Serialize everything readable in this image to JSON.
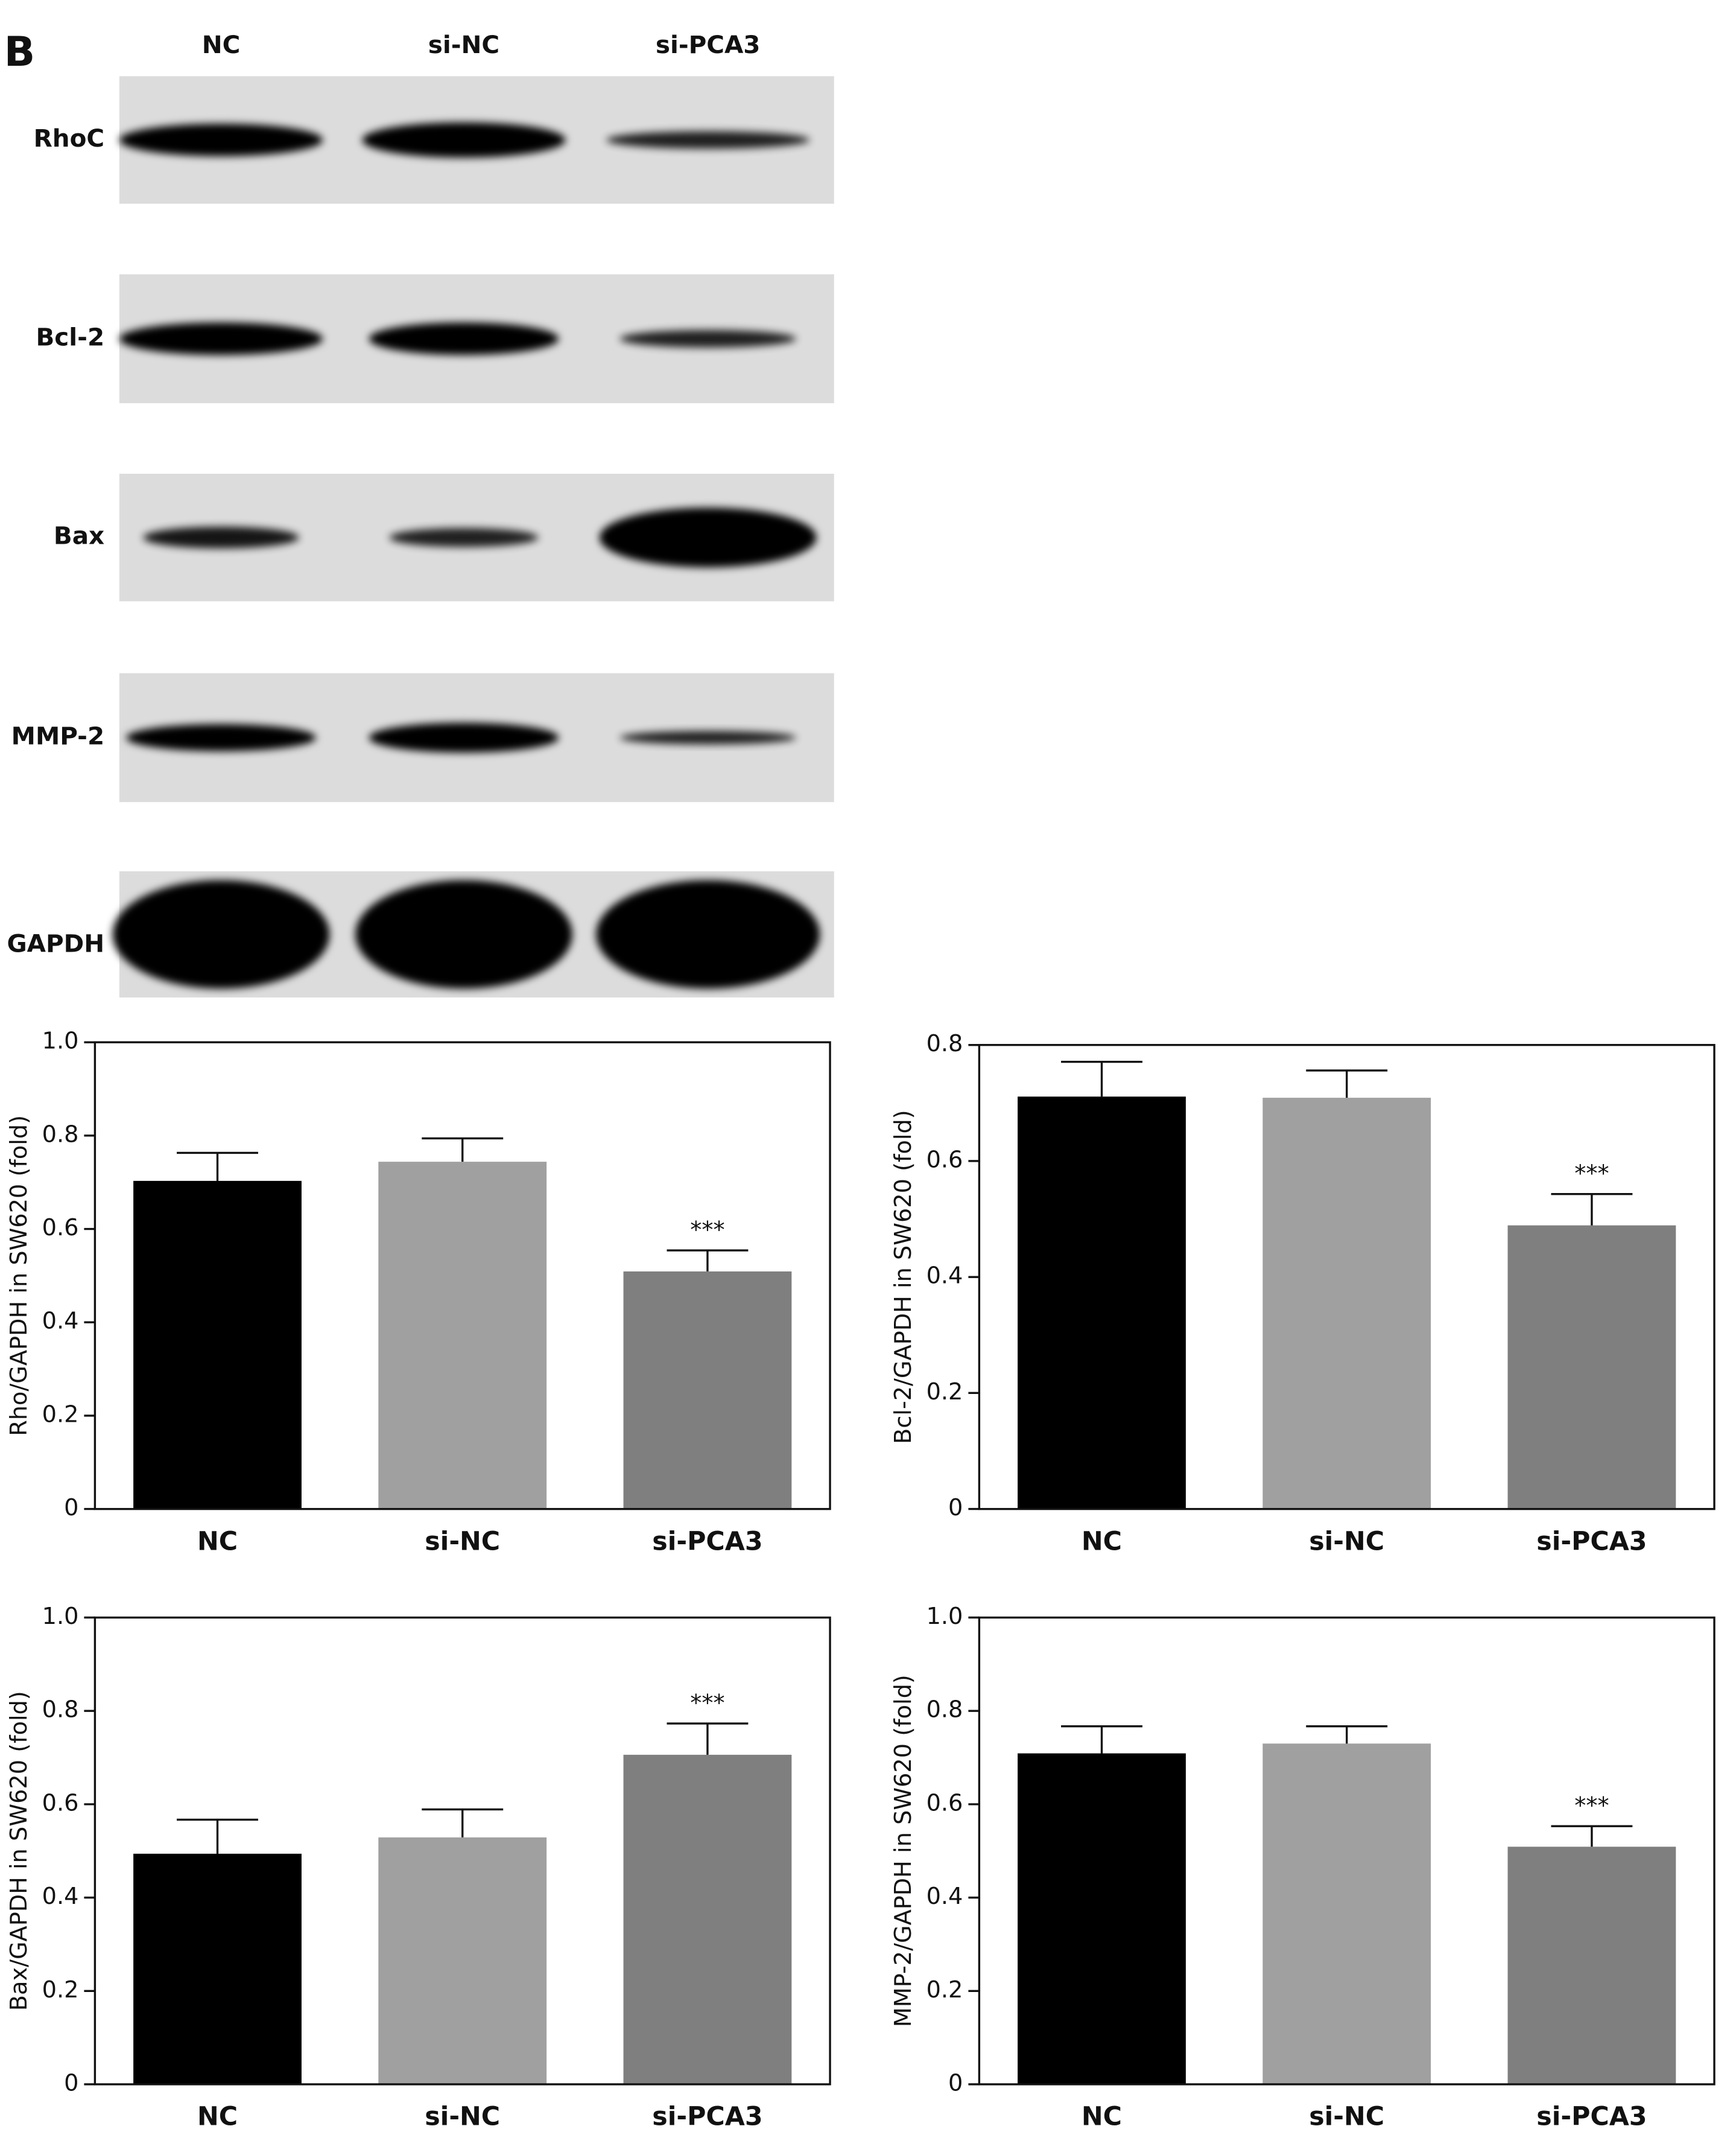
{
  "blot": {
    "panel_label": "B",
    "lanes": [
      "NC",
      "si-NC",
      "si-PCA3"
    ],
    "proteins": [
      "RhoC",
      "Bcl-2",
      "Bax",
      "MMP-2",
      "GAPDH"
    ]
  },
  "chart_data": [
    {
      "type": "bar",
      "ylabel": "Rho/GAPDH in SW620 (fold)",
      "categories": [
        "NC",
        "si-NC",
        "si-PCA3"
      ],
      "values": [
        0.703,
        0.744,
        0.509
      ],
      "errors": [
        0.06,
        0.05,
        0.045
      ],
      "significance": [
        null,
        null,
        "***"
      ],
      "colors": [
        "#000000",
        "#a0a0a0",
        "#7f7f7f"
      ],
      "ylim": [
        0,
        1
      ],
      "yticks": [
        0,
        0.2,
        0.4,
        0.6,
        0.8,
        {
          "value": 1,
          "label": "1.0"
        }
      ]
    },
    {
      "type": "bar",
      "ylabel": "Bcl-2/GAPDH in SW620 (fold)",
      "categories": [
        "NC",
        "si-NC",
        "si-PCA3"
      ],
      "values": [
        0.711,
        0.709,
        0.489
      ],
      "errors": [
        0.06,
        0.047,
        0.054
      ],
      "significance": [
        null,
        null,
        "***"
      ],
      "colors": [
        "#000000",
        "#a0a0a0",
        "#7f7f7f"
      ],
      "ylim": [
        0,
        0.8
      ],
      "yticks": [
        0,
        0.2,
        0.4,
        0.6,
        0.8
      ]
    },
    {
      "type": "bar",
      "ylabel": "Bax/GAPDH in SW620 (fold)",
      "categories": [
        "NC",
        "si-NC",
        "si-PCA3"
      ],
      "values": [
        0.494,
        0.529,
        0.706
      ],
      "errors": [
        0.073,
        0.06,
        0.067
      ],
      "significance": [
        null,
        null,
        "***"
      ],
      "colors": [
        "#000000",
        "#a0a0a0",
        "#7f7f7f"
      ],
      "ylim": [
        0,
        1
      ],
      "yticks": [
        0,
        0.2,
        0.4,
        0.6,
        0.8,
        {
          "value": 1,
          "label": "1.0"
        }
      ]
    },
    {
      "type": "bar",
      "ylabel": "MMP-2/GAPDH in SW620 (fold)",
      "categories": [
        "NC",
        "si-NC",
        "si-PCA3"
      ],
      "values": [
        0.709,
        0.73,
        0.509
      ],
      "errors": [
        0.058,
        0.037,
        0.044
      ],
      "significance": [
        null,
        null,
        "***"
      ],
      "colors": [
        "#000000",
        "#a0a0a0",
        "#7f7f7f"
      ],
      "ylim": [
        0,
        1
      ],
      "yticks": [
        0,
        0.2,
        0.4,
        0.6,
        0.8,
        {
          "value": 1,
          "label": "1.0"
        }
      ]
    }
  ]
}
